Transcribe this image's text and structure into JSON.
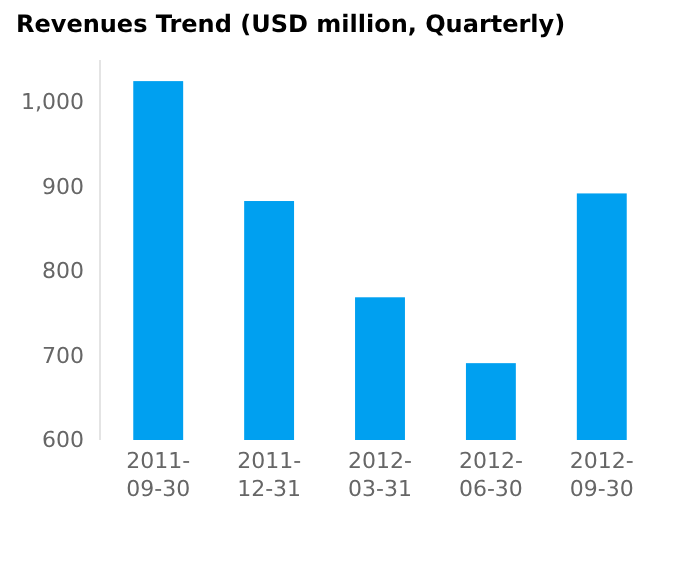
{
  "chart_data": {
    "type": "bar",
    "title": "Revenues Trend (USD million, Quarterly)",
    "categories": [
      "2011-09-30",
      "2011-12-31",
      "2012-03-31",
      "2012-06-30",
      "2012-09-30"
    ],
    "series": [
      {
        "color": "#00a0f0",
        "values": [
          1025,
          883,
          769,
          691,
          892
        ]
      }
    ],
    "ylim": [
      600,
      1050
    ],
    "yticks": [
      600,
      700,
      800,
      900,
      {
        "value": 1000,
        "label": "1,000"
      }
    ],
    "grid": false
  }
}
